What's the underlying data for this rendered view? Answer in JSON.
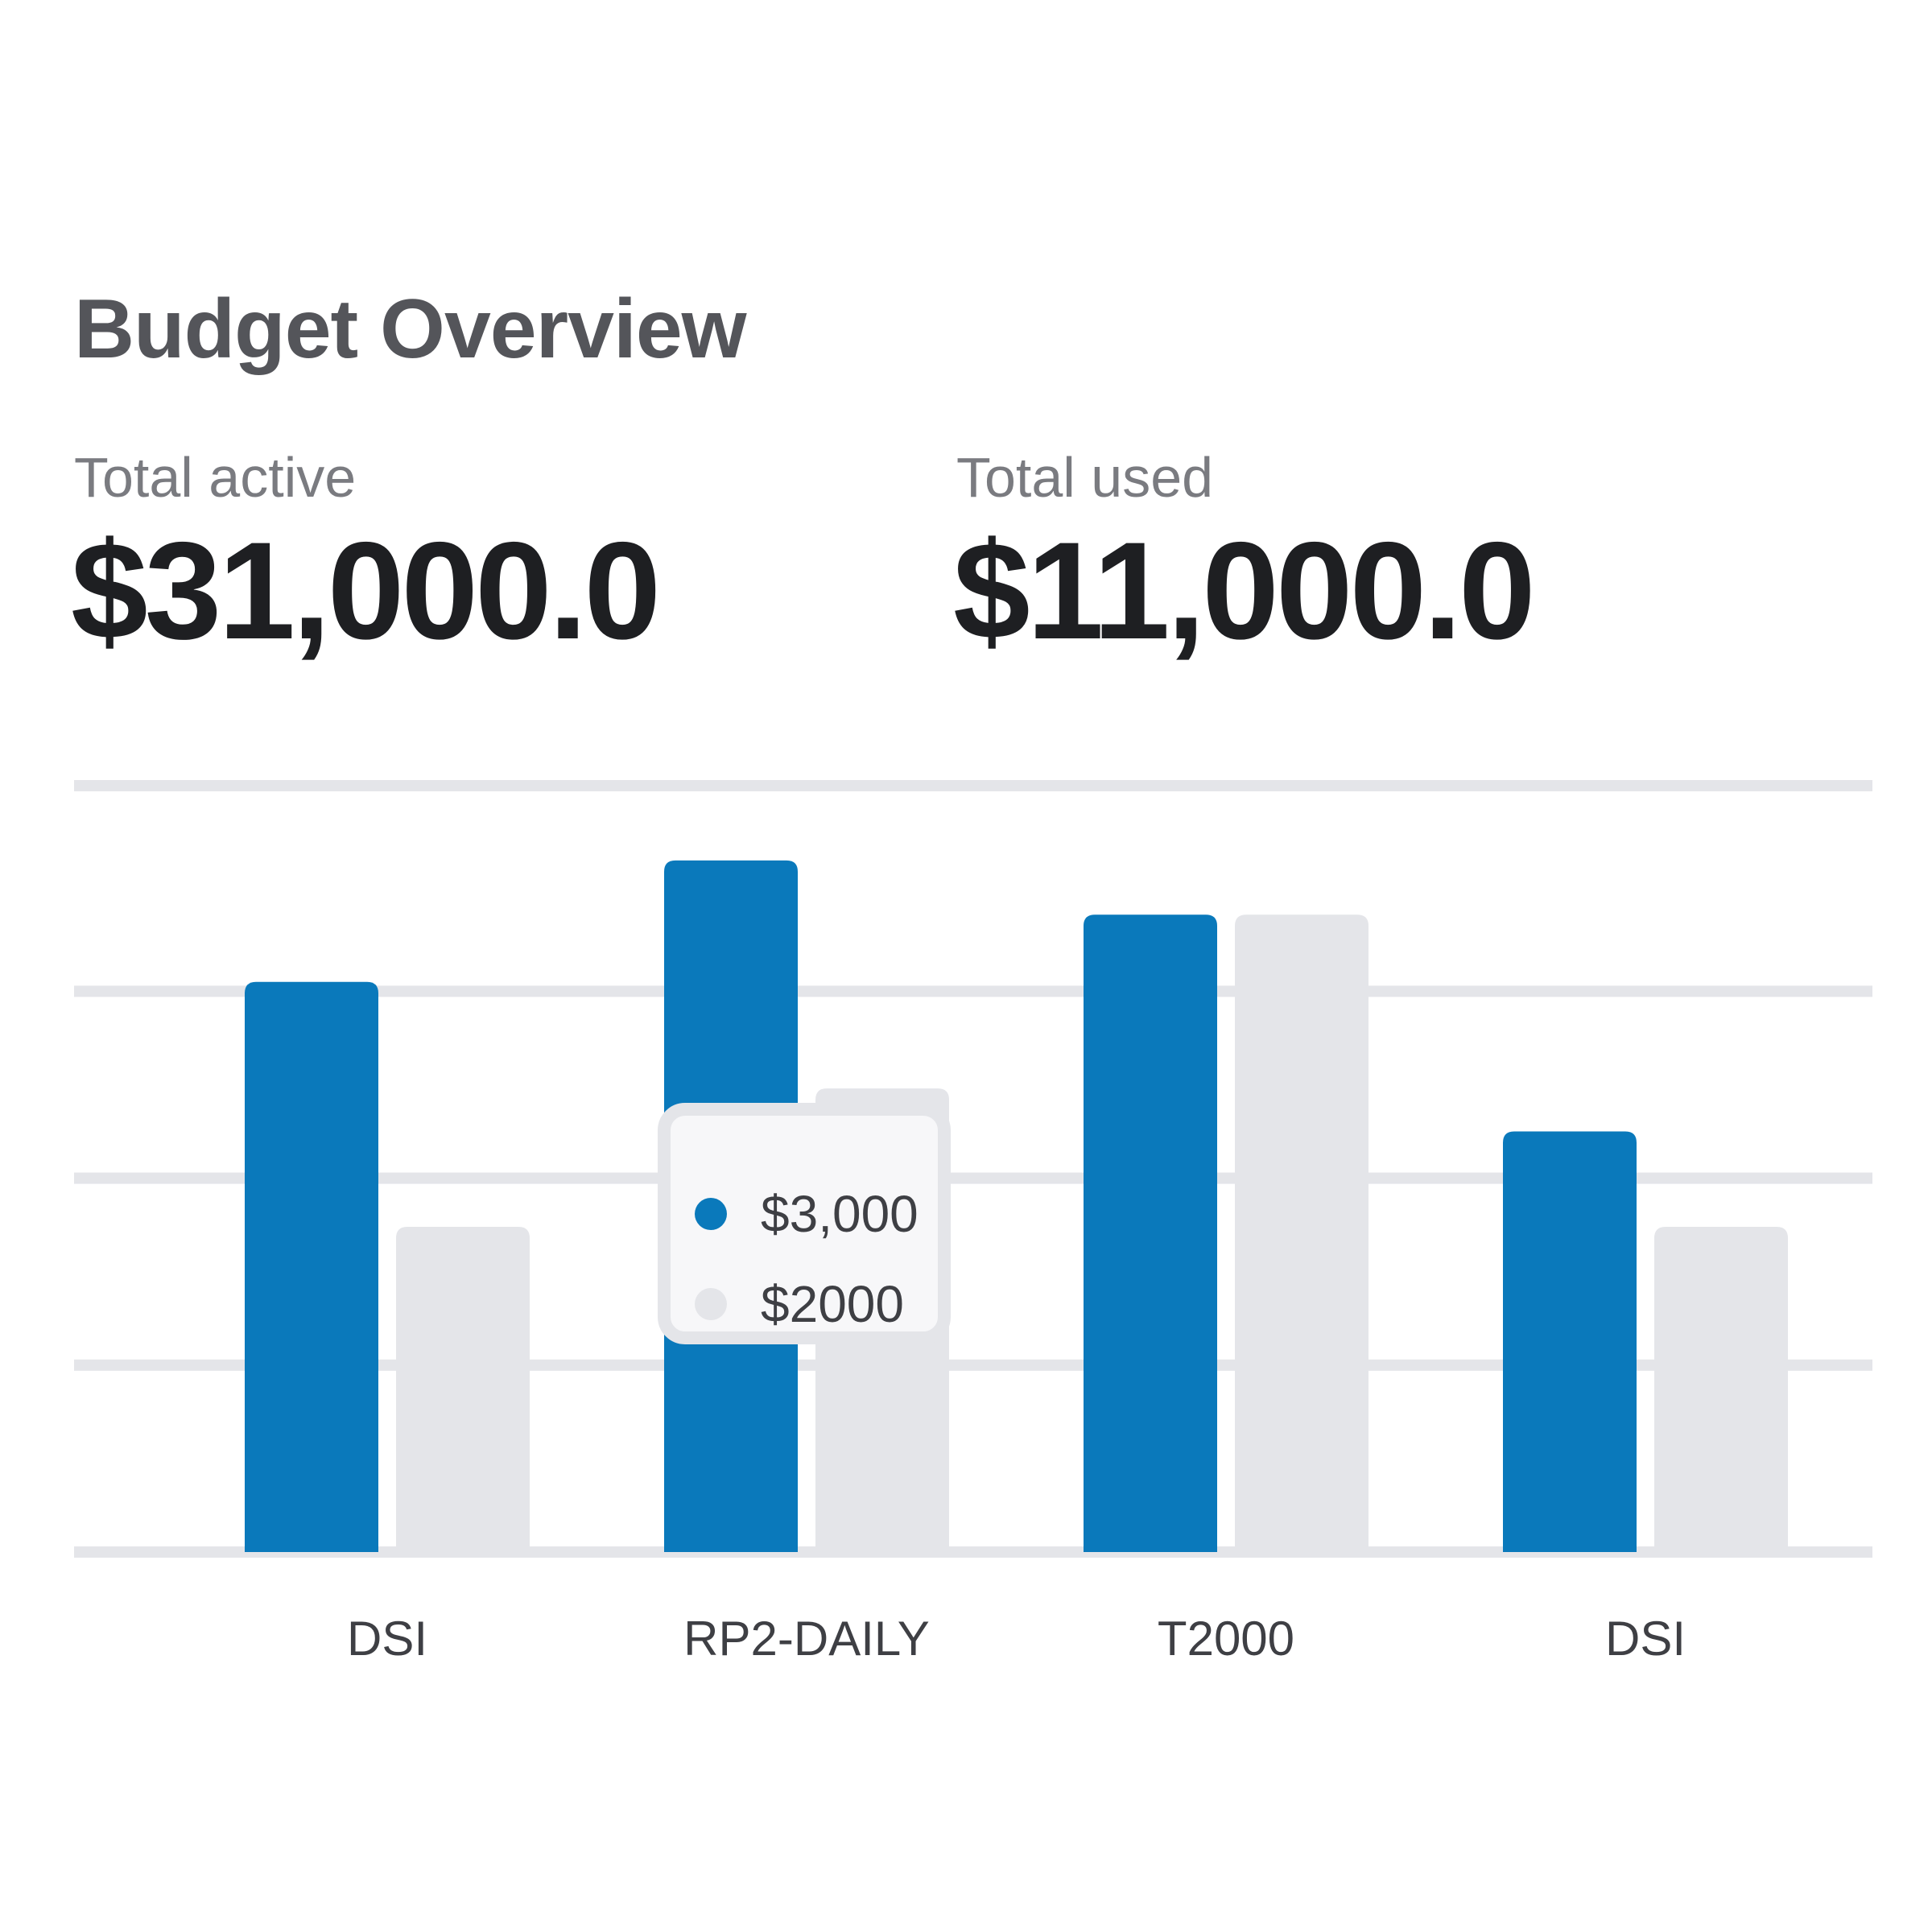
{
  "header": {
    "title": "Budget Overview",
    "stats": [
      {
        "label": "Total active",
        "value": "$31,000.0"
      },
      {
        "label": "Total used",
        "value": "$11,000.0"
      }
    ]
  },
  "colors": {
    "active": "#0a79bb",
    "used": "#e4e5e9",
    "grid": "#e4e5e9"
  },
  "tooltip": {
    "entries": [
      {
        "color": "#0a79bb",
        "text": "$3,000"
      },
      {
        "color": "#e4e5e9",
        "text": "$2000"
      }
    ]
  },
  "chart_data": {
    "type": "bar",
    "categories": [
      "DSI",
      "RP2-DAILY",
      "T2000",
      "DSI"
    ],
    "series": [
      {
        "color": "#0a79bb",
        "values": [
          3050,
          3700,
          3410,
          2250
        ]
      },
      {
        "color": "#e4e5e9",
        "values": [
          1740,
          2480,
          3410,
          1740
        ]
      }
    ],
    "ylim": [
      0,
      4100
    ],
    "gridlines": [
      0,
      1000,
      2000,
      3000,
      4100
    ],
    "grid": true,
    "legend": "none"
  }
}
